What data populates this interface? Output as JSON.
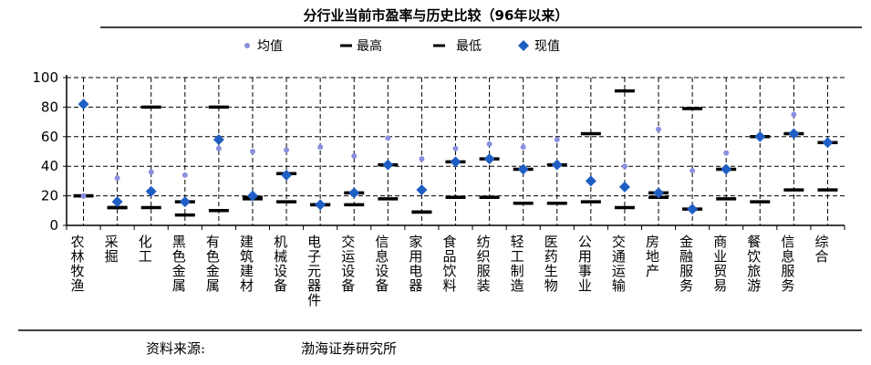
{
  "chart_data": {
    "type": "scatter",
    "title": "分行业当前市盈率与历史比较（96年以来）",
    "legend": [
      "均值",
      "最高",
      "最低",
      "现值"
    ],
    "legend_position": "top",
    "ylim": [
      0,
      100
    ],
    "yticks": [
      0,
      20,
      40,
      60,
      80,
      100
    ],
    "grid": true,
    "categories": [
      "农林牧渔",
      "采掘",
      "化工",
      "黑色金属",
      "有色金属",
      "建筑建材",
      "机械设备",
      "电子元器件",
      "交运设备",
      "信息设备",
      "家用电器",
      "食品饮料",
      "纺织服装",
      "轻工制造",
      "医药生物",
      "公用事业",
      "交通运输",
      "房地产",
      "金融服务",
      "商业贸易",
      "餐饮旅游",
      "信息服务",
      "综合"
    ],
    "series": [
      {
        "name": "均值",
        "values": [
          20,
          32,
          36,
          34,
          52,
          50,
          51,
          53,
          47,
          59,
          45,
          52,
          55,
          53,
          58,
          30,
          40,
          65,
          37,
          49,
          60,
          75,
          56
        ]
      },
      {
        "name": "最高",
        "values": [
          20,
          12,
          80,
          16,
          80,
          19,
          35,
          14,
          22,
          41,
          9,
          43,
          45,
          38,
          41,
          62,
          91,
          22,
          79,
          38,
          60,
          62,
          56
        ]
      },
      {
        "name": "最低",
        "values": [
          20,
          12,
          12,
          7,
          10,
          18,
          16,
          14,
          14,
          18,
          9,
          19,
          19,
          15,
          15,
          16,
          12,
          19,
          11,
          18,
          16,
          24,
          24
        ]
      },
      {
        "name": "现值",
        "values": [
          82,
          16,
          23,
          16,
          58,
          20,
          34,
          14,
          22,
          41,
          24,
          43,
          45,
          38,
          41,
          30,
          26,
          22,
          11,
          38,
          60,
          62,
          56
        ]
      }
    ],
    "colors": {
      "mean": "#8b8fe0",
      "marker": "#1f5fc4",
      "line": "#000000"
    }
  },
  "source": {
    "label": "资料来源:",
    "name": "渤海证券研究所"
  }
}
